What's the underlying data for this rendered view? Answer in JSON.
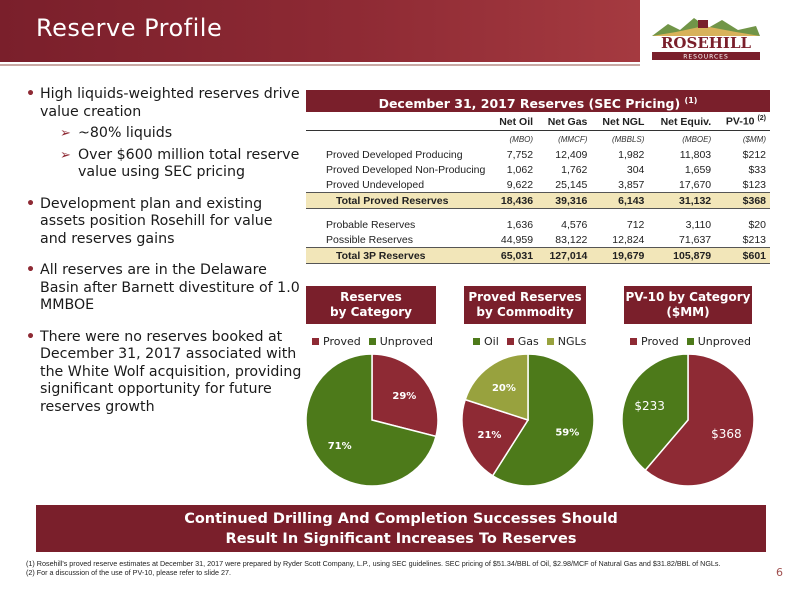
{
  "header": {
    "title": "Reserve Profile"
  },
  "logo": {
    "name": "ROSEHILL",
    "sub": "RESOURCES"
  },
  "bullets": [
    {
      "text": "High liquids-weighted reserves drive value creation",
      "subs": [
        "~80% liquids",
        "Over $600 million total reserve value using SEC pricing"
      ]
    },
    {
      "text": "Development plan and existing assets position Rosehill for value and reserves gains",
      "subs": []
    },
    {
      "text": "All reserves are in the Delaware Basin after Barnett divestiture of 1.0 MMBOE",
      "subs": []
    },
    {
      "text": "There were no reserves booked at December 31, 2017 associated with the White Wolf acquisition, providing significant opportunity for future reserves growth",
      "subs": []
    }
  ],
  "table": {
    "title": "December 31, 2017 Reserves (SEC Pricing)",
    "title_note": "(1)",
    "columns": [
      "Net Oil",
      "Net Gas",
      "Net NGL",
      "Net Equiv.",
      "PV-10"
    ],
    "pv10_note": "(2)",
    "units": [
      "(MBO)",
      "(MMCF)",
      "(MBBLS)",
      "(MBOE)",
      "($MM)"
    ],
    "rows": [
      {
        "label": "Proved Developed Producing",
        "values": [
          "7,752",
          "12,409",
          "1,982",
          "11,803",
          "$212"
        ]
      },
      {
        "label": "Proved Developed Non-Producing",
        "values": [
          "1,062",
          "1,762",
          "304",
          "1,659",
          "$33"
        ]
      },
      {
        "label": "Proved Undeveloped",
        "values": [
          "9,622",
          "25,145",
          "3,857",
          "17,670",
          "$123"
        ]
      },
      {
        "label": "Total Proved Reserves",
        "values": [
          "18,436",
          "39,316",
          "6,143",
          "31,132",
          "$368"
        ],
        "total": true
      },
      {
        "gap": true
      },
      {
        "label": "Probable Reserves",
        "values": [
          "1,636",
          "4,576",
          "712",
          "3,110",
          "$20"
        ]
      },
      {
        "label": "Possible Reserves",
        "values": [
          "44,959",
          "83,122",
          "12,824",
          "71,637",
          "$213"
        ]
      },
      {
        "label": "Total 3P Reserves",
        "values": [
          "65,031",
          "127,014",
          "19,679",
          "105,879",
          "$601"
        ],
        "total": true
      }
    ]
  },
  "chart_data": [
    {
      "type": "pie",
      "title": "Reserves by Category",
      "labels": [
        "Proved",
        "Unproved"
      ],
      "values": [
        29,
        71
      ],
      "value_labels": [
        "29%",
        "71%"
      ],
      "colors": [
        "#8e2a34",
        "#4d7a1a"
      ],
      "legend": "top"
    },
    {
      "type": "pie",
      "title": "Proved Reserves by Commodity",
      "labels": [
        "Oil",
        "Gas",
        "NGLs"
      ],
      "values": [
        59,
        21,
        20
      ],
      "value_labels": [
        "59%",
        "21%",
        "20%"
      ],
      "colors": [
        "#4d7a1a",
        "#8e2a34",
        "#98a23e"
      ],
      "legend": "top"
    },
    {
      "type": "pie",
      "title": "PV-10 by Category ($MM)",
      "labels": [
        "Proved",
        "Unproved"
      ],
      "values": [
        368,
        233
      ],
      "value_labels": [
        "$368",
        "$233"
      ],
      "colors": [
        "#8e2a34",
        "#4d7a1a"
      ],
      "legend": "top"
    }
  ],
  "chart_headers": [
    [
      "Reserves",
      "by Category"
    ],
    [
      "Proved Reserves",
      "by Commodity"
    ],
    [
      "PV-10 by Category",
      "($MM)"
    ]
  ],
  "banner": {
    "line1": "Continued Drilling And Completion Successes Should",
    "line2": "Result In Significant Increases To Reserves"
  },
  "footnotes": [
    "(1) Rosehill's proved reserve estimates at December 31, 2017 were prepared by Ryder Scott Company, L.P., using SEC guidelines. SEC pricing of $51.34/BBL of Oil, $2.98/MCF of Natural Gas and $31.82/BBL of NGLs.",
    "(2) For a discussion of the use of PV-10, please refer to slide 27."
  ],
  "page_number": "6"
}
